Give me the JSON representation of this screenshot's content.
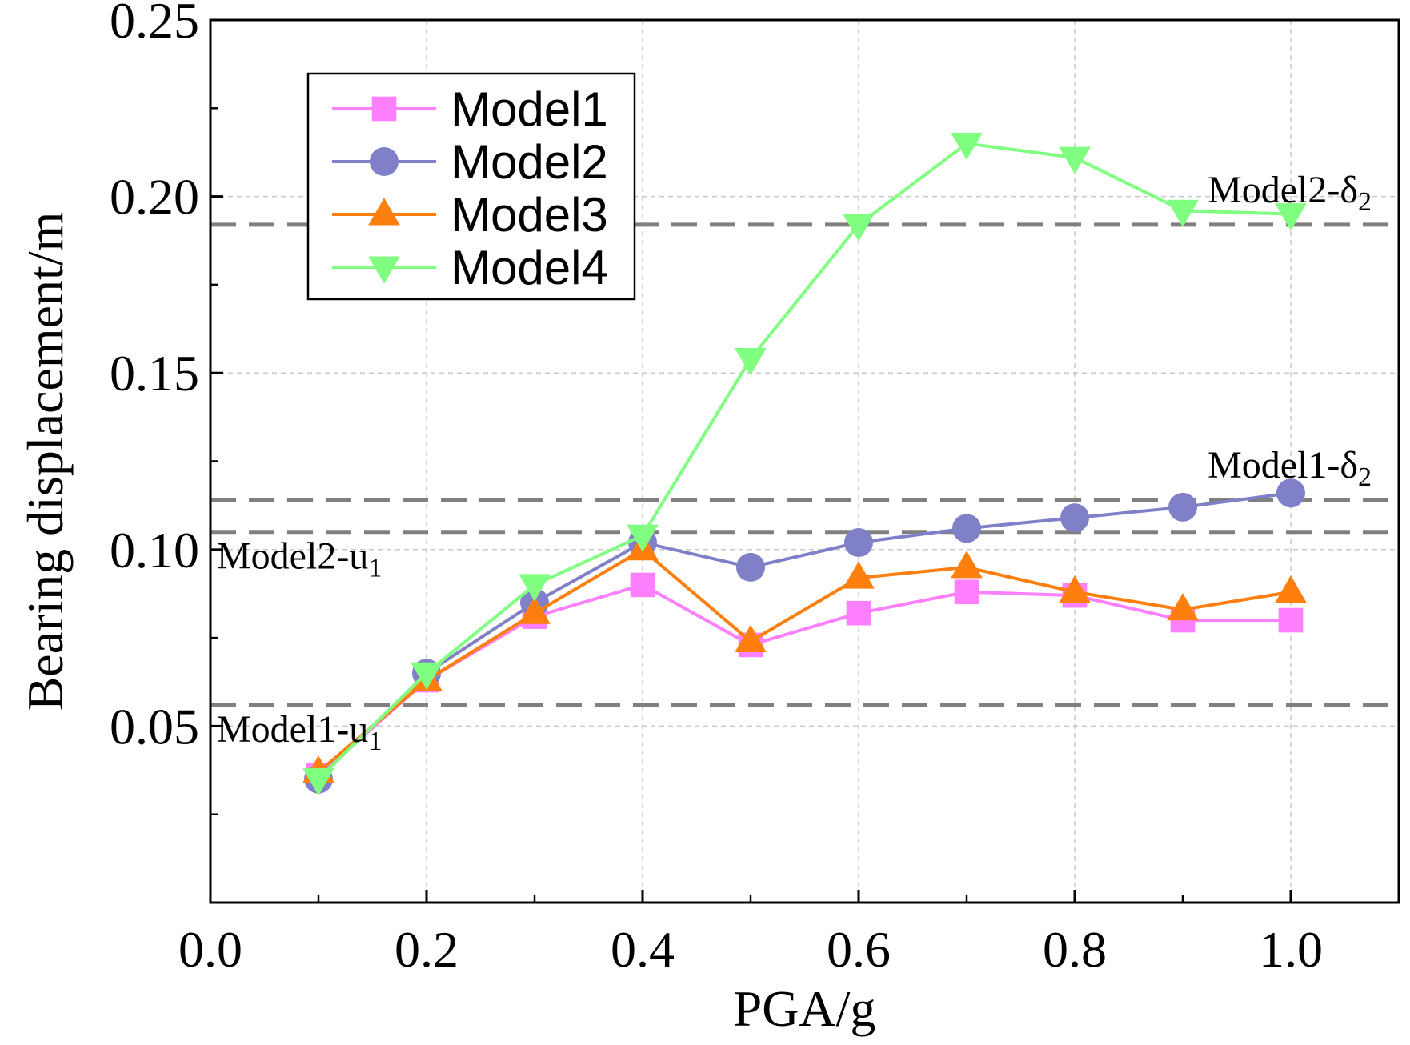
{
  "chart_data": {
    "type": "line",
    "xlabel": "PGA/g",
    "ylabel": "Bearing displacement/m",
    "xlim": [
      0.0,
      1.1
    ],
    "ylim": [
      0.0,
      0.25
    ],
    "xticks": [
      0.0,
      0.2,
      0.4,
      0.6,
      0.8,
      1.0
    ],
    "xtick_labels": [
      "0.0",
      "0.2",
      "0.4",
      "0.6",
      "0.8",
      "1.0"
    ],
    "yticks": [
      0.05,
      0.1,
      0.15,
      0.2,
      0.25
    ],
    "ytick_labels": [
      "0.05",
      "0.10",
      "0.15",
      "0.20",
      "0.25"
    ],
    "grid": true,
    "legend_position": "top-left",
    "x": [
      0.1,
      0.2,
      0.3,
      0.4,
      0.5,
      0.6,
      0.7,
      0.8,
      0.9,
      1.0
    ],
    "series": [
      {
        "name": "Model1",
        "color": "#ff80ff",
        "marker": "square",
        "values": [
          0.036,
          0.063,
          0.081,
          0.09,
          0.073,
          0.082,
          0.088,
          0.087,
          0.08,
          0.08
        ]
      },
      {
        "name": "Model2",
        "color": "#8080c8",
        "marker": "circle",
        "values": [
          0.035,
          0.065,
          0.085,
          0.102,
          0.095,
          0.102,
          0.106,
          0.109,
          0.112,
          0.116
        ]
      },
      {
        "name": "Model3",
        "color": "#ff7f0e",
        "marker": "triangle-up",
        "values": [
          0.037,
          0.063,
          0.082,
          0.1,
          0.074,
          0.092,
          0.095,
          0.088,
          0.083,
          0.088
        ]
      },
      {
        "name": "Model4",
        "color": "#80ff80",
        "marker": "triangle-down",
        "values": [
          0.035,
          0.065,
          0.09,
          0.104,
          0.154,
          0.192,
          0.215,
          0.211,
          0.196,
          0.195
        ]
      }
    ],
    "reference_lines": [
      {
        "value": 0.192,
        "label": "Model2-δ",
        "sub": "2",
        "side": "right-above"
      },
      {
        "value": 0.114,
        "label": "Model1-δ",
        "sub": "2",
        "side": "right-above"
      },
      {
        "value": 0.105,
        "label": "Model2-u",
        "sub": "1",
        "side": "left-below"
      },
      {
        "value": 0.056,
        "label": "Model1-u",
        "sub": "1",
        "side": "left-below"
      }
    ],
    "reference_line_color": "#808080"
  }
}
